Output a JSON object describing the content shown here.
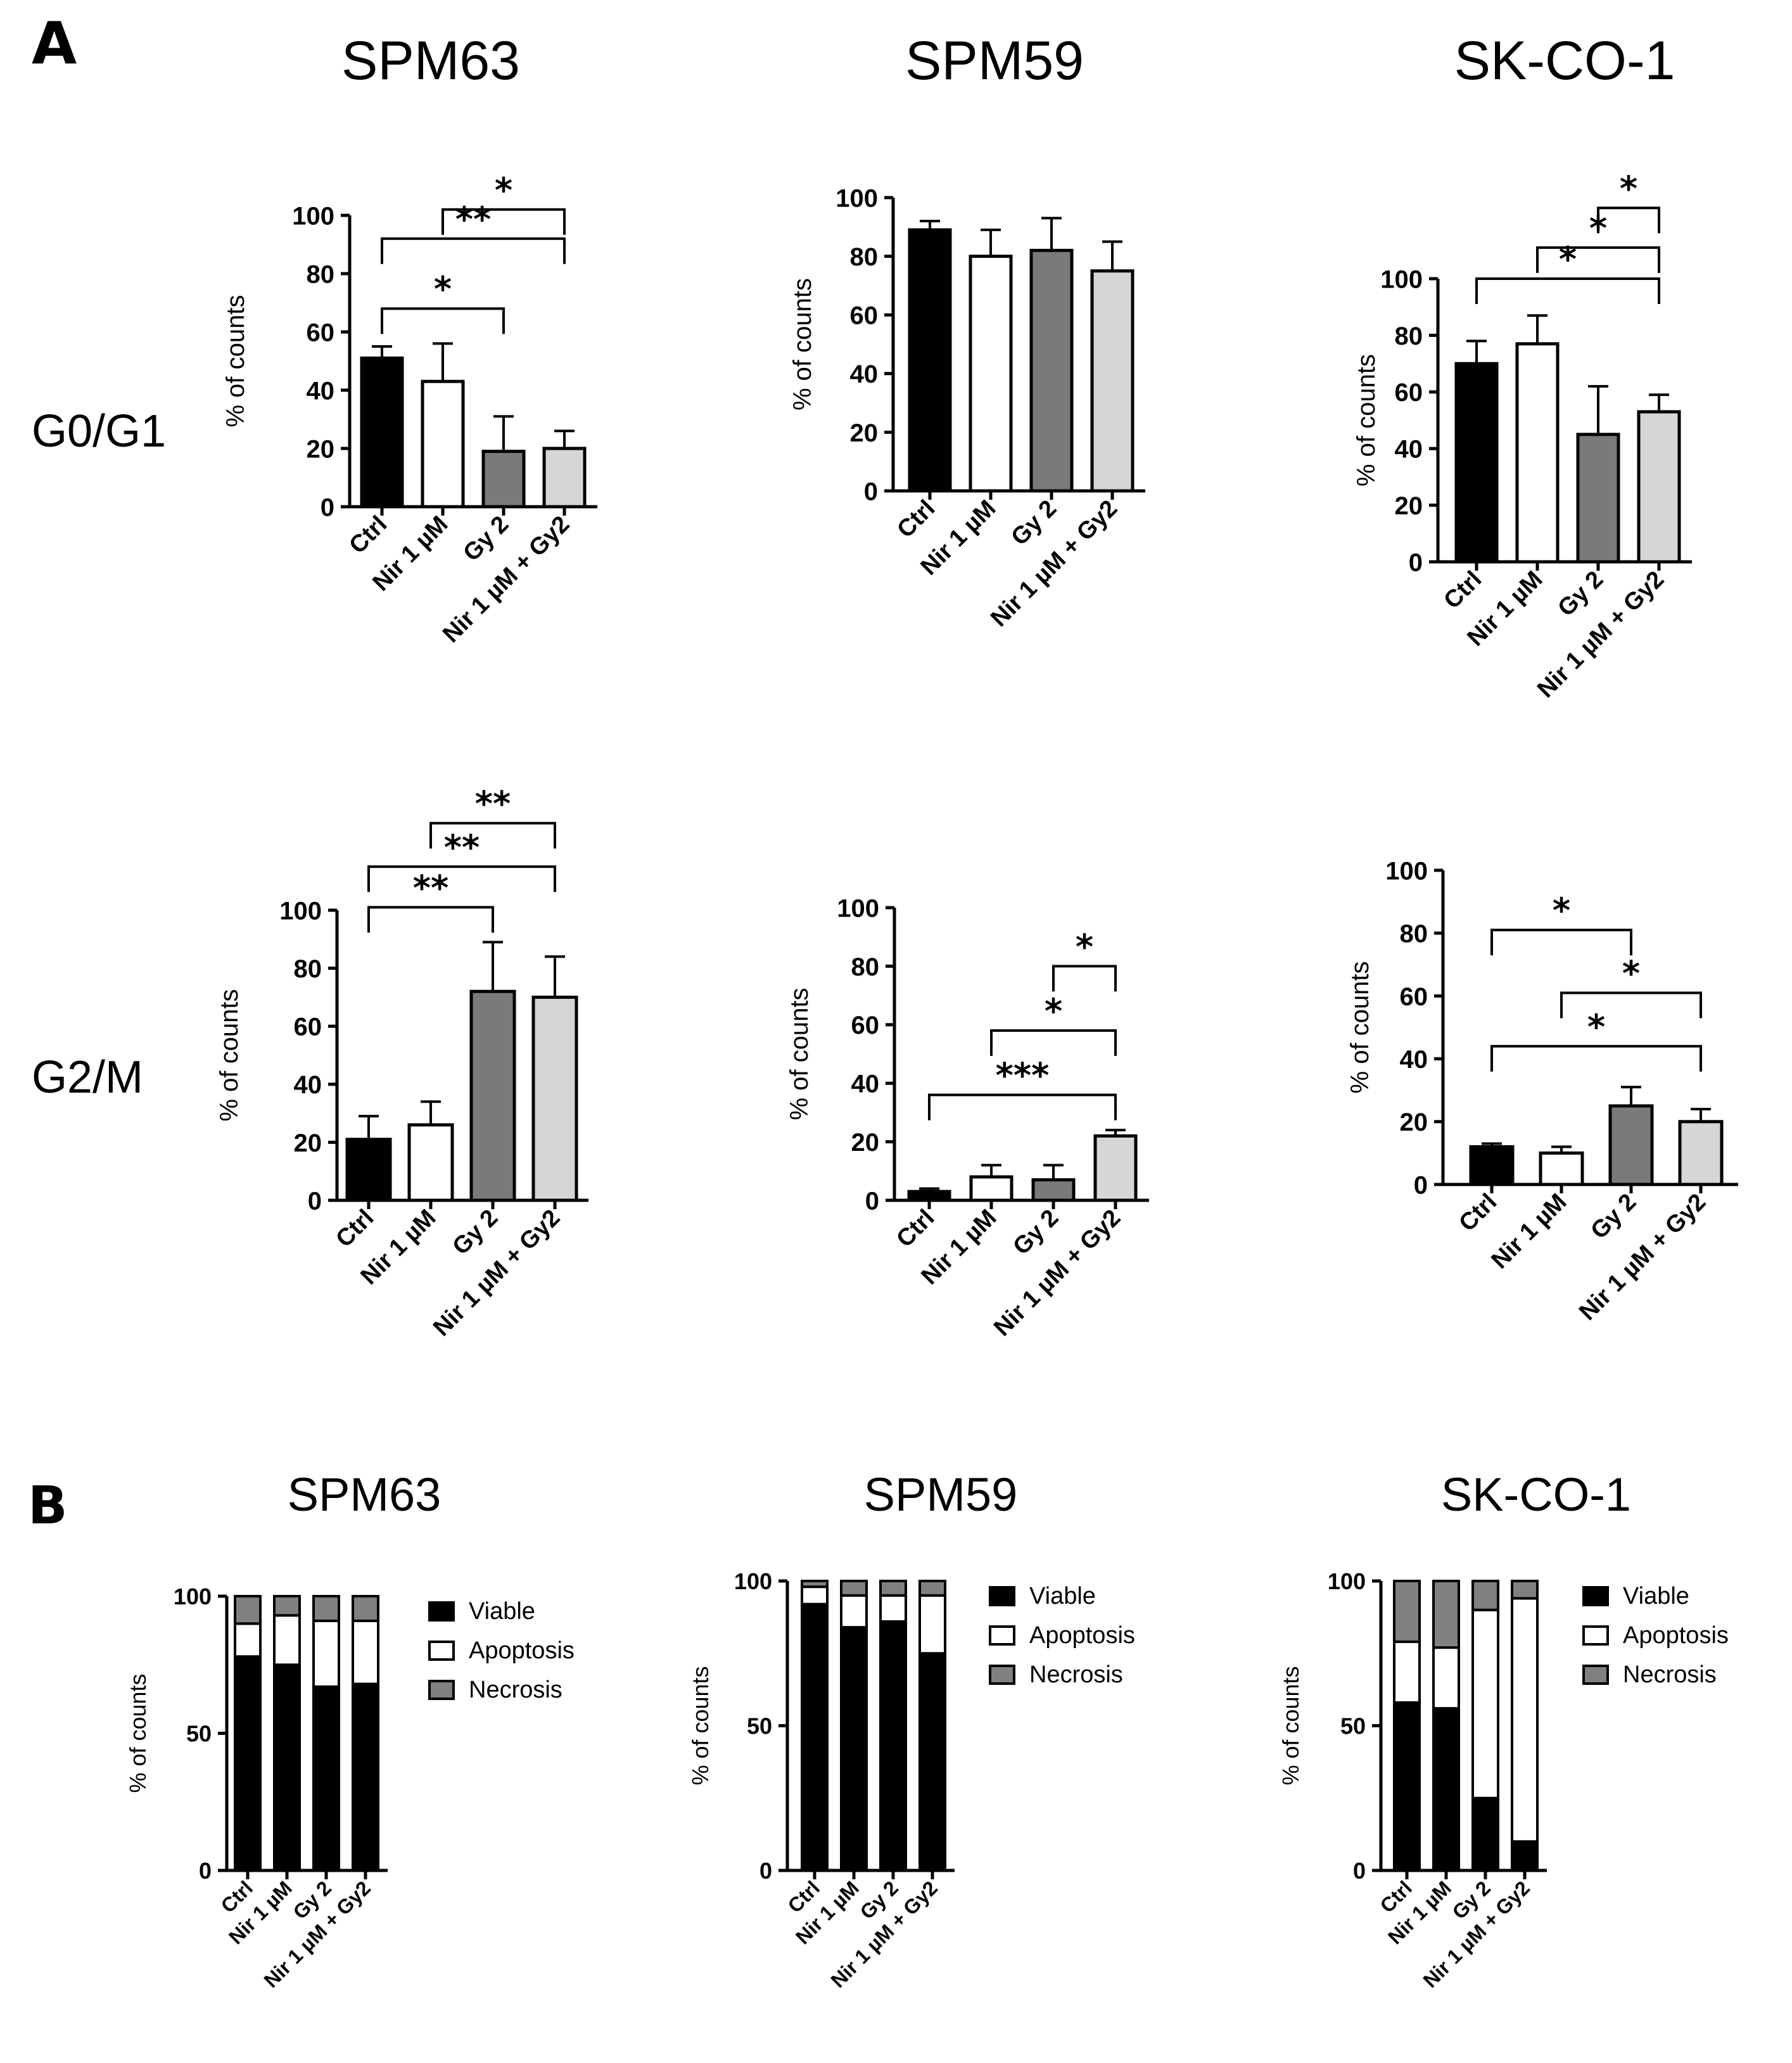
{
  "figure": {
    "panel_a_label": "A",
    "panel_b_label": "B",
    "row_labels": [
      "G0/G1",
      "G2/M"
    ],
    "cell_lines": [
      "SPM63",
      "SPM59",
      "SK-CO-1"
    ]
  },
  "colors": {
    "ctrl": "#000000",
    "nir": "#ffffff",
    "gy": "#7a7a7a",
    "combo": "#d6d6d6",
    "viable": "#000000",
    "apoptosis": "#ffffff",
    "necrosis": "#808080"
  },
  "chart_data": [
    {
      "id": "a-spm63-g0g1",
      "panel": "A",
      "type": "bar",
      "title": "SPM63",
      "row": "G0/G1",
      "ylabel": "% of counts",
      "ylim": [
        0,
        100
      ],
      "yticks": [
        "0",
        "20",
        "40",
        "60",
        "80",
        "100"
      ],
      "categories": [
        "Ctrl",
        "Nir 1 µM",
        "Gy 2",
        "Nir 1 µM + Gy2"
      ],
      "values": [
        51,
        43,
        19,
        20
      ],
      "errors": [
        4,
        13,
        12,
        6
      ],
      "significance": [
        {
          "from": 0,
          "to": 2,
          "label": "*",
          "y": 68
        },
        {
          "from": 0,
          "to": 3,
          "label": "**",
          "y": 92
        },
        {
          "from": 1,
          "to": 3,
          "label": "*",
          "y": 102
        }
      ]
    },
    {
      "id": "a-spm59-g0g1",
      "panel": "A",
      "type": "bar",
      "title": "SPM59",
      "row": "G0/G1",
      "ylabel": "% of counts",
      "ylim": [
        0,
        100
      ],
      "yticks": [
        "0",
        "20",
        "40",
        "60",
        "80",
        "100"
      ],
      "categories": [
        "Ctrl",
        "Nir 1 µM",
        "Gy 2",
        "Nir 1 µM + Gy2"
      ],
      "values": [
        89,
        80,
        82,
        75
      ],
      "errors": [
        3,
        9,
        11,
        10
      ],
      "significance": []
    },
    {
      "id": "a-skco1-g0g1",
      "panel": "A",
      "type": "bar",
      "title": "SK-CO-1",
      "row": "G0/G1",
      "ylabel": "% of counts",
      "ylim": [
        0,
        100
      ],
      "yticks": [
        "0",
        "20",
        "40",
        "60",
        "80",
        "100"
      ],
      "categories": [
        "Ctrl",
        "Nir 1 µM",
        "Gy 2",
        "Nir 1 µM + Gy2"
      ],
      "values": [
        70,
        77,
        45,
        53
      ],
      "errors": [
        8,
        10,
        17,
        6
      ],
      "significance": [
        {
          "from": 0,
          "to": 3,
          "label": "*",
          "y": 100
        },
        {
          "from": 1,
          "to": 3,
          "label": "*",
          "y": 111
        },
        {
          "from": 2,
          "to": 3,
          "label": "*",
          "y": 125
        }
      ]
    },
    {
      "id": "a-spm63-g2m",
      "panel": "A",
      "type": "bar",
      "title": "SPM63",
      "row": "G2/M",
      "ylabel": "% of counts",
      "ylim": [
        0,
        100
      ],
      "yticks": [
        "0",
        "20",
        "40",
        "60",
        "80",
        "100"
      ],
      "categories": [
        "Ctrl",
        "Nir 1 µM",
        "Gy 2",
        "Nir 1 µM + Gy2"
      ],
      "values": [
        21,
        26,
        72,
        70
      ],
      "errors": [
        8,
        8,
        17,
        14
      ],
      "significance": [
        {
          "from": 0,
          "to": 2,
          "label": "**",
          "y": 101
        },
        {
          "from": 0,
          "to": 3,
          "label": "**",
          "y": 115
        },
        {
          "from": 1,
          "to": 3,
          "label": "**",
          "y": 130
        }
      ]
    },
    {
      "id": "a-spm59-g2m",
      "panel": "A",
      "type": "bar",
      "title": "SPM59",
      "row": "G2/M",
      "ylabel": "% of counts",
      "ylim": [
        0,
        100
      ],
      "yticks": [
        "0",
        "20",
        "40",
        "60",
        "80",
        "100"
      ],
      "categories": [
        "Ctrl",
        "Nir 1 µM",
        "Gy 2",
        "Nir 1 µM + Gy2"
      ],
      "values": [
        3,
        8,
        7,
        22
      ],
      "errors": [
        1,
        4,
        5,
        2
      ],
      "significance": [
        {
          "from": 0,
          "to": 3,
          "label": "***",
          "y": 36
        },
        {
          "from": 1,
          "to": 3,
          "label": "*",
          "y": 58
        },
        {
          "from": 2,
          "to": 3,
          "label": "*",
          "y": 80
        }
      ]
    },
    {
      "id": "a-skco1-g2m",
      "panel": "A",
      "type": "bar",
      "title": "SK-CO-1",
      "row": "G2/M",
      "ylabel": "% of counts",
      "ylim": [
        0,
        100
      ],
      "yticks": [
        "0",
        "20",
        "40",
        "60",
        "80",
        "100"
      ],
      "categories": [
        "Ctrl",
        "Nir 1 µM",
        "Gy 2",
        "Nir 1 µM + Gy2"
      ],
      "values": [
        12,
        10,
        25,
        20
      ],
      "errors": [
        1,
        2,
        6,
        4
      ],
      "significance": [
        {
          "from": 0,
          "to": 3,
          "label": "*",
          "y": 44
        },
        {
          "from": 1,
          "to": 3,
          "label": "*",
          "y": 61
        },
        {
          "from": 0,
          "to": 2,
          "label": "*",
          "y": 81
        }
      ]
    },
    {
      "id": "b-spm63",
      "panel": "B",
      "type": "stacked-bar",
      "title": "SPM63",
      "ylabel": "% of counts",
      "ylim": [
        0,
        100
      ],
      "yticks": [
        "0",
        "50",
        "100"
      ],
      "categories": [
        "Ctrl",
        "Nir 1 µM",
        "Gy 2",
        "Nir 1 µM + Gy2"
      ],
      "series": [
        {
          "name": "Viable",
          "values": [
            78,
            75,
            67,
            68
          ]
        },
        {
          "name": "Apoptosis",
          "values": [
            12,
            18,
            24,
            23
          ]
        },
        {
          "name": "Necrosis",
          "values": [
            10,
            7,
            9,
            9
          ]
        }
      ],
      "legend_position": "top-right"
    },
    {
      "id": "b-spm59",
      "panel": "B",
      "type": "stacked-bar",
      "title": "SPM59",
      "ylabel": "% of counts",
      "ylim": [
        0,
        100
      ],
      "yticks": [
        "0",
        "50",
        "100"
      ],
      "categories": [
        "Ctrl",
        "Nir 1 µM",
        "Gy 2",
        "Nir 1 µM + Gy2"
      ],
      "series": [
        {
          "name": "Viable",
          "values": [
            92,
            84,
            86,
            75
          ]
        },
        {
          "name": "Apoptosis",
          "values": [
            6,
            11,
            9,
            20
          ]
        },
        {
          "name": "Necrosis",
          "values": [
            2,
            5,
            5,
            5
          ]
        }
      ],
      "legend_position": "top-right"
    },
    {
      "id": "b-skco1",
      "panel": "B",
      "type": "stacked-bar",
      "title": "SK-CO-1",
      "ylabel": "% of counts",
      "ylim": [
        0,
        100
      ],
      "yticks": [
        "0",
        "50",
        "100"
      ],
      "categories": [
        "Ctrl",
        "Nir 1 µM",
        "Gy 2",
        "Nir 1 µM + Gy2"
      ],
      "series": [
        {
          "name": "Viable",
          "values": [
            58,
            56,
            25,
            10
          ]
        },
        {
          "name": "Apoptosis",
          "values": [
            21,
            21,
            65,
            84
          ]
        },
        {
          "name": "Necrosis",
          "values": [
            21,
            23,
            10,
            6
          ]
        }
      ],
      "legend_position": "top-right"
    }
  ]
}
